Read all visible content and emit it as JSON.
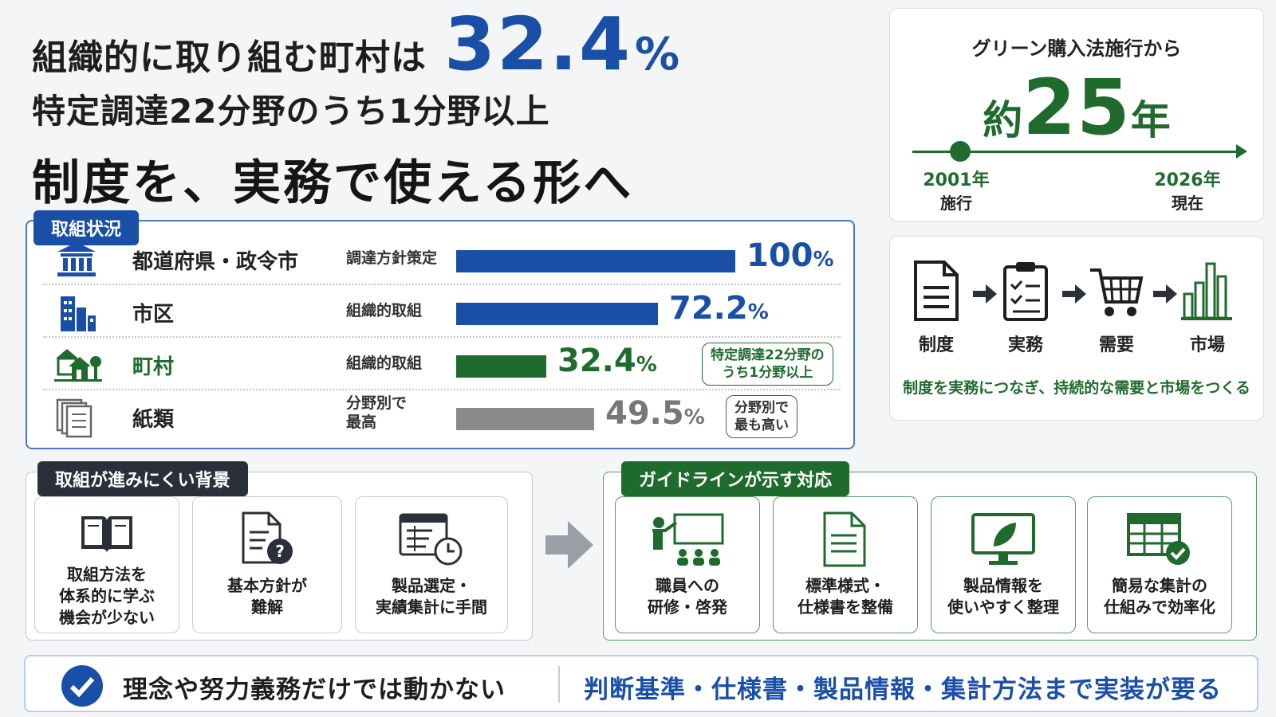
{
  "headline": {
    "line1_prefix": "組織的に取り組む町村は",
    "line1_value": "32.4",
    "line1_unit": "%",
    "line2": "特定調達22分野のうち1分野以上",
    "line3": "制度を、実務で使える形へ"
  },
  "timeline": {
    "caption": "グリーン購入法施行から",
    "prefix": "約",
    "years": "25",
    "suffix": "年",
    "start_year": "2001年",
    "start_label": "施行",
    "end_year": "2026年",
    "end_label": "現在"
  },
  "flow": {
    "steps": [
      "制度",
      "実務",
      "需要",
      "市場"
    ],
    "icons": [
      "document-icon",
      "checklist-icon",
      "cart-icon",
      "bar-chart-icon"
    ],
    "footer": "制度を実務につなぎ、持続的な需要と市場をつくる"
  },
  "status": {
    "tag": "取組状況",
    "rows": [
      {
        "name": "都道府県・政令市",
        "kind": "調達方針策定",
        "value": "100",
        "unit": "%",
        "fraction": 1.0,
        "color": "#1a4fa8",
        "icon": "government-building-icon"
      },
      {
        "name": "市区",
        "kind": "組織的取組",
        "value": "72.2",
        "unit": "%",
        "fraction": 0.722,
        "color": "#1a4fa8",
        "icon": "city-buildings-icon"
      },
      {
        "name": "町村",
        "kind": "組織的取組",
        "value": "32.4",
        "unit": "%",
        "fraction": 0.324,
        "color": "#1f6b2e",
        "icon": "houses-trees-icon",
        "note": "特定調達22分野の\nうち1分野以上"
      },
      {
        "name": "紙類",
        "kind": "分野別で\n最高",
        "value": "49.5",
        "unit": "%",
        "fraction": 0.495,
        "color": "#8a8a8a",
        "icon": "paper-stack-icon",
        "note": "分野別で\n最も高い"
      }
    ]
  },
  "background": {
    "tag": "取組が進みにくい背景",
    "items": [
      {
        "text": "取組方法を\n体系的に学ぶ\n機会が少ない",
        "icon": "open-book-icon"
      },
      {
        "text": "基本方針が\n難解",
        "icon": "document-question-icon"
      },
      {
        "text": "製品選定・\n実績集計に手間",
        "icon": "calendar-clock-icon"
      }
    ]
  },
  "guideline": {
    "tag": "ガイドラインが示す対応",
    "items": [
      {
        "text": "職員への\n研修・啓発",
        "icon": "training-presentation-icon"
      },
      {
        "text": "標準様式・\n仕様書を整備",
        "icon": "document-icon"
      },
      {
        "text": "製品情報を\n使いやすく整理",
        "icon": "monitor-leaf-icon"
      },
      {
        "text": "簡易な集計の\n仕組みで効率化",
        "icon": "spreadsheet-check-icon"
      }
    ]
  },
  "banner": {
    "left": "理念や努力義務だけでは動かない",
    "right": "判断基準・仕様書・製品情報・集計方法まで実装が要る"
  }
}
